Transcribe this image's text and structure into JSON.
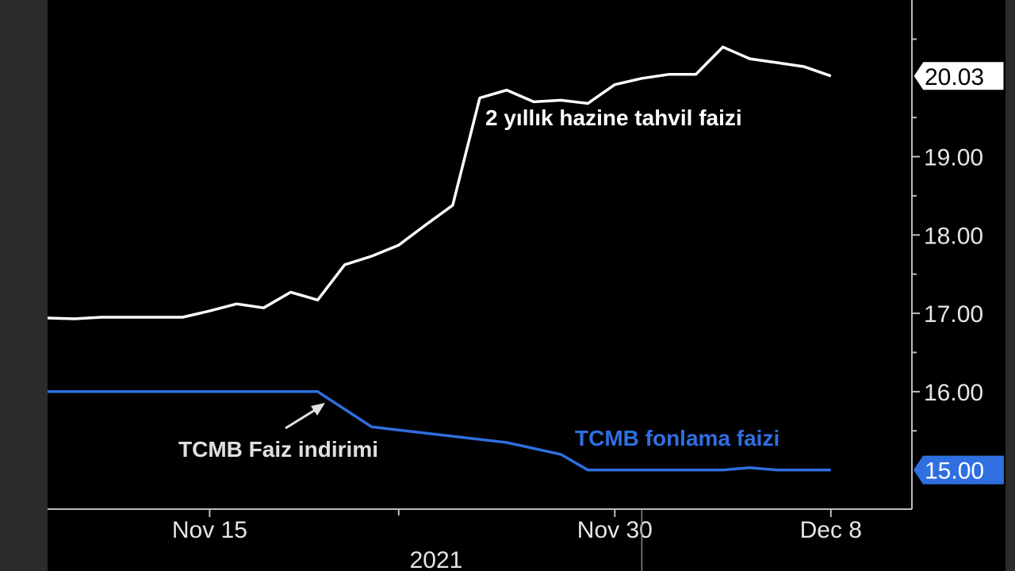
{
  "chart_data": {
    "type": "line",
    "x_ticks": [
      {
        "date": "2021-11-15",
        "label": "Nov 15"
      },
      {
        "date": "2021-11-30",
        "label": "Nov 30"
      },
      {
        "date": "2021-12-08",
        "label": "Dec 8"
      }
    ],
    "year_label": "2021",
    "y_ticks": [
      17.0,
      18.0,
      19.0,
      16.0
    ],
    "y_tick_labels": [
      "17.00",
      "18.00",
      "19.00",
      "16.00"
    ],
    "ylim": [
      14.5,
      21.0
    ],
    "xlim": [
      "2021-11-09",
      "2021-12-11"
    ],
    "grid": false,
    "series": [
      {
        "name": "2 yıllık hazine tahvil faizi",
        "color": "#ffffff",
        "last_value_label": "20.03",
        "points": [
          [
            "2021-11-09",
            16.94
          ],
          [
            "2021-11-10",
            16.93
          ],
          [
            "2021-11-11",
            16.95
          ],
          [
            "2021-11-12",
            16.95
          ],
          [
            "2021-11-14",
            16.95
          ],
          [
            "2021-11-15",
            17.03
          ],
          [
            "2021-11-16",
            17.12
          ],
          [
            "2021-11-17",
            17.07
          ],
          [
            "2021-11-18",
            17.27
          ],
          [
            "2021-11-19",
            17.17
          ],
          [
            "2021-11-20",
            17.62
          ],
          [
            "2021-11-21",
            17.73
          ],
          [
            "2021-11-22",
            17.87
          ],
          [
            "2021-11-23",
            18.13
          ],
          [
            "2021-11-24",
            18.38
          ],
          [
            "2021-11-25",
            19.75
          ],
          [
            "2021-11-26",
            19.85
          ],
          [
            "2021-11-27",
            19.7
          ],
          [
            "2021-11-28",
            19.72
          ],
          [
            "2021-11-29",
            19.68
          ],
          [
            "2021-11-30",
            19.92
          ],
          [
            "2021-12-01",
            20.0
          ],
          [
            "2021-12-02",
            20.05
          ],
          [
            "2021-12-03",
            20.05
          ],
          [
            "2021-12-04",
            20.4
          ],
          [
            "2021-12-05",
            20.25
          ],
          [
            "2021-12-06",
            20.2
          ],
          [
            "2021-12-07",
            20.15
          ],
          [
            "2021-12-08",
            20.03
          ]
        ]
      },
      {
        "name": "TCMB fonlama faizi",
        "color": "#2f6fe0",
        "last_value_label": "15.00",
        "points": [
          [
            "2021-11-09",
            16.0
          ],
          [
            "2021-11-19",
            16.0
          ],
          [
            "2021-11-21",
            15.55
          ],
          [
            "2021-11-26",
            15.35
          ],
          [
            "2021-11-28",
            15.2
          ],
          [
            "2021-11-29",
            15.0
          ],
          [
            "2021-12-04",
            15.0
          ],
          [
            "2021-12-05",
            15.03
          ],
          [
            "2021-12-06",
            15.0
          ],
          [
            "2021-12-08",
            15.0
          ]
        ]
      }
    ],
    "annotations": [
      {
        "text": "2 yıllık hazine tahvil faizi",
        "color": "#ffffff",
        "near_series": 0
      },
      {
        "text": "TCMB fonlama faizi",
        "color": "#2f6fe0",
        "near_series": 1
      },
      {
        "text": "TCMB Faiz indirimi",
        "color": "#e0e0e0",
        "arrow_to": [
          "2021-11-19",
          15.73
        ]
      }
    ]
  }
}
